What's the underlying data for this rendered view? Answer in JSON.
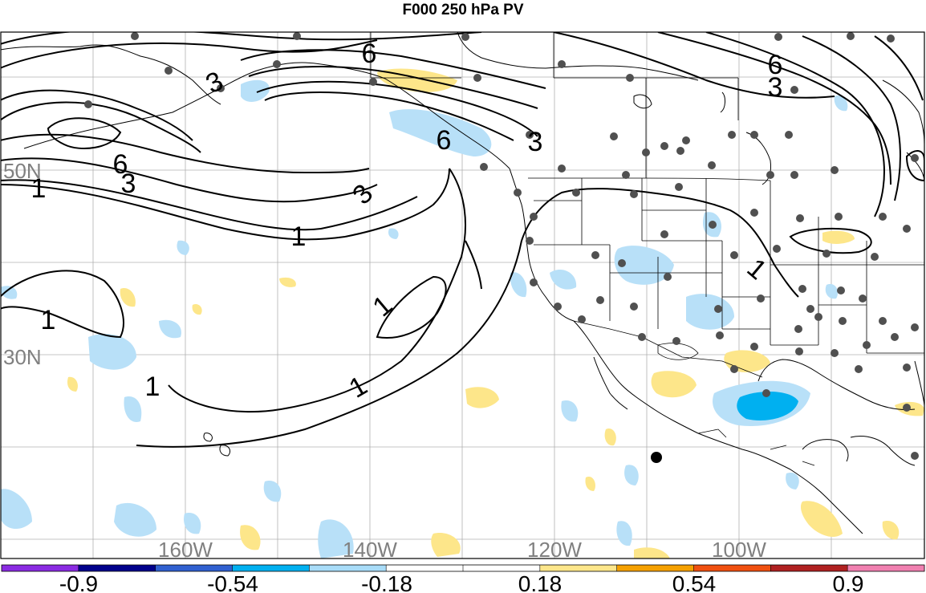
{
  "title": "F000 250 hPa PV",
  "lat_labels": [
    "50N",
    "30N"
  ],
  "lon_labels": [
    "160W",
    "140W",
    "120W",
    "100W"
  ],
  "contour_labels": [
    "6",
    "3",
    "6",
    "3",
    "1",
    "3",
    "6",
    "3",
    "3",
    "6",
    "1",
    "1",
    "1",
    "1",
    "1",
    "1"
  ],
  "colorbar": {
    "tick_labels": [
      "-0.9",
      "-0.54",
      "-0.18",
      "0.18",
      "0.54",
      "0.9"
    ],
    "colors": [
      "#8a2be2",
      "#00008b",
      "#3060d0",
      "#00b0f0",
      "#a8dcf8",
      "#ffffff",
      "#ffffff",
      "#fde68a",
      "#f5a000",
      "#f05010",
      "#b02020",
      "#f080b0"
    ]
  },
  "shading_colors": {
    "negative_light": "#b8e0f8",
    "negative_medium": "#00b0f0",
    "positive_light": "#fde68a"
  }
}
